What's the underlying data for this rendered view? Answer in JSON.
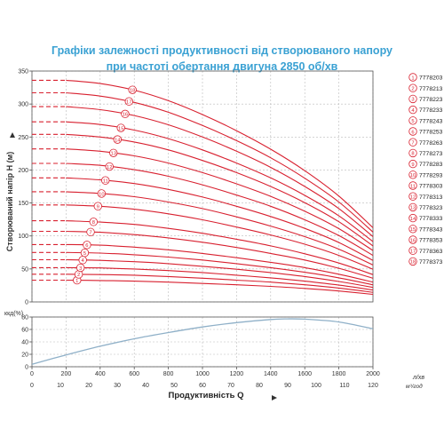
{
  "title": {
    "line1": "Графіки залежності продуктивності від створюваного напору",
    "line2": "при частоті обертання двигуна 2850 об/хв"
  },
  "colors": {
    "curve": "#d8202f",
    "efficiency": "#8fb0c8",
    "grid": "#bbbbbb",
    "title": "#3aa1d3",
    "axis": "#555555"
  },
  "chart_data": [
    {
      "type": "line",
      "ylabel": "Створюваний напір H (м)",
      "ylim": [
        0,
        350
      ],
      "yticks": [
        0,
        50,
        100,
        150,
        200,
        250,
        300,
        350
      ],
      "xlim": [
        0,
        2000
      ],
      "grid": true,
      "legend_position": "right",
      "x": [
        0,
        200,
        400,
        600,
        800,
        1000,
        1200,
        1400,
        1600,
        1800,
        2000
      ],
      "series": [
        {
          "marker": "1",
          "name": "7778203",
          "values": [
            33,
            33,
            32.5,
            31.5,
            30,
            28,
            26,
            23.5,
            20.5,
            16.5,
            11.5
          ]
        },
        {
          "marker": "2",
          "name": "7778213",
          "values": [
            42,
            42,
            41.5,
            40.5,
            38.5,
            36,
            33,
            30,
            26,
            21,
            14.5
          ]
        },
        {
          "marker": "3",
          "name": "7778223",
          "values": [
            52,
            52,
            51.5,
            50,
            47.5,
            44.5,
            40.5,
            36.5,
            31.5,
            25.5,
            18
          ]
        },
        {
          "marker": "4",
          "name": "7778233",
          "values": [
            64,
            64,
            63,
            61,
            58,
            54,
            49.5,
            44.5,
            38.5,
            31,
            22
          ]
        },
        {
          "marker": "5",
          "name": "7778243",
          "values": [
            75,
            75,
            74,
            71.5,
            68,
            63.5,
            58,
            52,
            45,
            36.5,
            26
          ]
        },
        {
          "marker": "6",
          "name": "7778253",
          "values": [
            87,
            87,
            86,
            83,
            79,
            73.5,
            67,
            60,
            52,
            42,
            30
          ]
        },
        {
          "marker": "7",
          "name": "7778263",
          "values": [
            107,
            107,
            105.5,
            102,
            97,
            90.5,
            82.5,
            73.5,
            63.5,
            51,
            36
          ]
        },
        {
          "marker": "8",
          "name": "7778273",
          "values": [
            123,
            123,
            121,
            117.5,
            111.5,
            104,
            95,
            85,
            73,
            59,
            41.5
          ]
        },
        {
          "marker": "9",
          "name": "7778283",
          "values": [
            147,
            147,
            145,
            140.5,
            133.5,
            124.5,
            113.5,
            101.5,
            87.5,
            70.5,
            49.5
          ]
        },
        {
          "marker": "10",
          "name": "7778293",
          "values": [
            167,
            167,
            164.5,
            159.5,
            151.5,
            141.5,
            129,
            115,
            99,
            80,
            56
          ]
        },
        {
          "marker": "11",
          "name": "7778303",
          "values": [
            188,
            188,
            185,
            179.5,
            170.5,
            159,
            145,
            129.5,
            111.5,
            90,
            63
          ]
        },
        {
          "marker": "12",
          "name": "7778313",
          "values": [
            210,
            210,
            207,
            200.5,
            190.5,
            177.5,
            162,
            145,
            124.5,
            100.5,
            70.5
          ]
        },
        {
          "marker": "13",
          "name": "7778323",
          "values": [
            232,
            232,
            228.5,
            221.5,
            210.5,
            196,
            179,
            160,
            137.5,
            111,
            78
          ]
        },
        {
          "marker": "14",
          "name": "7778333",
          "values": [
            254,
            254,
            250,
            242.5,
            230.5,
            214.5,
            196,
            175,
            150.5,
            121.5,
            85
          ]
        },
        {
          "marker": "15",
          "name": "7778343",
          "values": [
            273,
            273,
            269,
            260.5,
            247.5,
            230.5,
            210.5,
            188,
            161.5,
            130.5,
            91.5
          ]
        },
        {
          "marker": "16",
          "name": "7778353",
          "values": [
            296,
            296,
            291.5,
            282.5,
            268.5,
            250,
            228.5,
            204,
            175,
            141.5,
            99
          ]
        },
        {
          "marker": "17",
          "name": "7778363",
          "values": [
            317,
            317,
            312,
            302.5,
            287.5,
            267.5,
            244.5,
            218.5,
            187.5,
            151.5,
            106
          ]
        },
        {
          "marker": "18",
          "name": "7778373",
          "values": [
            336,
            336,
            331,
            321,
            305,
            284,
            259.5,
            231.5,
            199,
            160.5,
            112.5
          ]
        }
      ]
    },
    {
      "type": "line",
      "ylabel": "ккд(%)",
      "ylim": [
        0,
        80
      ],
      "yticks": [
        0,
        20,
        40,
        60,
        80
      ],
      "xlabel": "Продуктивність  Q",
      "xlim": [
        0,
        2000
      ],
      "xticks": [
        0,
        200,
        400,
        600,
        800,
        1000,
        1200,
        1400,
        1600,
        1800,
        2000
      ],
      "xticks2": [
        0,
        10,
        20,
        30,
        40,
        50,
        60,
        70,
        80,
        90,
        100,
        110,
        120
      ],
      "x_units": "л/хв",
      "x_units2": "м³/год",
      "grid": true,
      "x": [
        0,
        200,
        400,
        600,
        800,
        1000,
        1200,
        1400,
        1500,
        1600,
        1800,
        2000
      ],
      "series": [
        {
          "values": [
            4,
            19,
            33,
            45,
            55,
            64,
            71,
            76,
            77,
            76.5,
            72,
            61
          ]
        }
      ]
    }
  ]
}
